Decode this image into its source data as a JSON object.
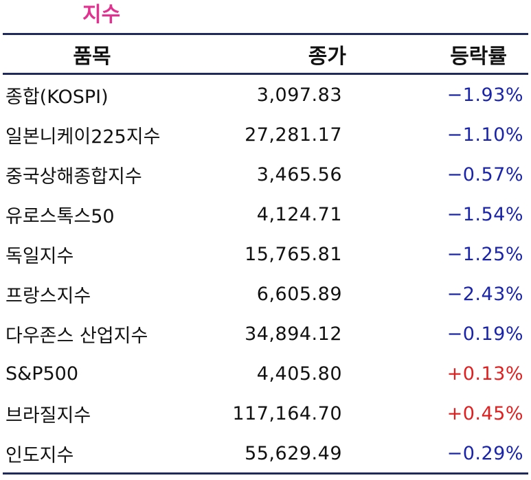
{
  "title": "지수",
  "headers": {
    "name": "품목",
    "close": "종가",
    "change": "등락률"
  },
  "colors": {
    "title": "#e0338f",
    "negative": "#1a24a8",
    "positive": "#e02020",
    "rule": "#1f2a5a"
  },
  "rows": [
    {
      "name": "종합(KOSPI)",
      "close": "3,097.83",
      "change": "−1.93%",
      "dir": "neg"
    },
    {
      "name": "일본니케이225지수",
      "close": "27,281.17",
      "change": "−1.10%",
      "dir": "neg"
    },
    {
      "name": "중국상해종합지수",
      "close": "3,465.56",
      "change": "−0.57%",
      "dir": "neg"
    },
    {
      "name": "유로스톡스50",
      "close": "4,124.71",
      "change": "−1.54%",
      "dir": "neg"
    },
    {
      "name": "독일지수",
      "close": "15,765.81",
      "change": "−1.25%",
      "dir": "neg"
    },
    {
      "name": "프랑스지수",
      "close": "6,605.89",
      "change": "−2.43%",
      "dir": "neg"
    },
    {
      "name": "다우존스 산업지수",
      "close": "34,894.12",
      "change": "−0.19%",
      "dir": "neg"
    },
    {
      "name": "S&P500",
      "close": "4,405.80",
      "change": "+0.13%",
      "dir": "pos"
    },
    {
      "name": "브라질지수",
      "close": "117,164.70",
      "change": "+0.45%",
      "dir": "pos"
    },
    {
      "name": "인도지수",
      "close": "55,629.49",
      "change": "−0.29%",
      "dir": "neg"
    }
  ]
}
